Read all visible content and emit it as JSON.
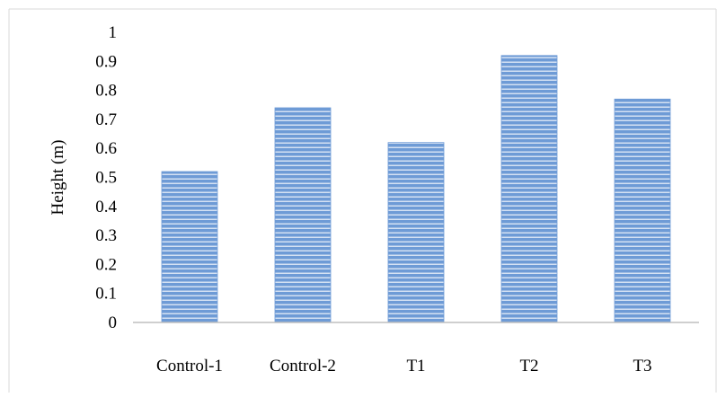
{
  "chart_data": {
    "type": "bar",
    "title": "",
    "xlabel": "",
    "ylabel": "Height (m)",
    "categories": [
      "Control-1",
      "Control-2",
      "T1",
      "T2",
      "T3"
    ],
    "values": [
      0.52,
      0.74,
      0.62,
      0.92,
      0.77
    ],
    "ylim": [
      0,
      1
    ],
    "yticks": [
      "0",
      "0.1",
      "0.2",
      "0.3",
      "0.4",
      "0.5",
      "0.6",
      "0.7",
      "0.8",
      "0.9",
      "1"
    ],
    "grid": false,
    "legend": "none",
    "bar_color": "#6E9BD6",
    "bar_stripe_color": "#FFFFFF",
    "axis_color": "#BFBFBF",
    "border_color": "#D9D9D9"
  }
}
